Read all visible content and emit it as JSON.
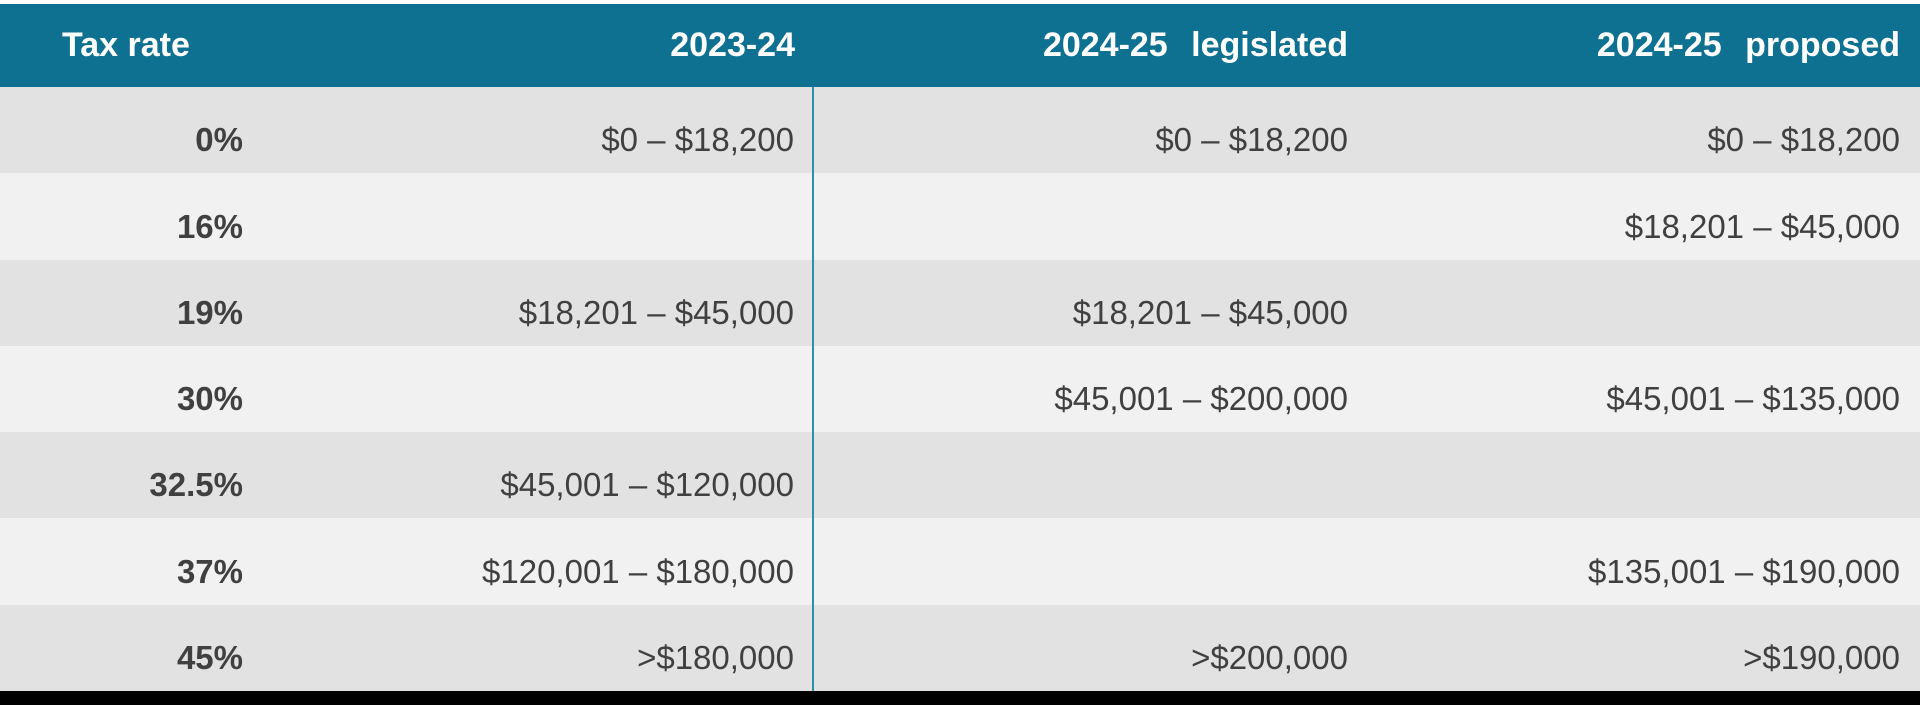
{
  "colors": {
    "header_bg": "#0E7191",
    "header_text": "#FFFFFF",
    "separator_line": "#2E8FA9",
    "row_shade_dark": "#E2E2E2",
    "row_shade_light": "#F1F1F1",
    "cell_text": "#404040",
    "bottom_bar": "#000000"
  },
  "table": {
    "headers": [
      {
        "label": "Tax rate"
      },
      {
        "label": "2023-24"
      },
      {
        "label": "2024-25 legislated"
      },
      {
        "label": "2024-25 proposed"
      }
    ],
    "rows": [
      {
        "cells": [
          "0%",
          "$0 – $18,200",
          "$0 – $18,200",
          "$0 – $18,200"
        ]
      },
      {
        "cells": [
          "16%",
          "",
          "",
          "$18,201 – $45,000"
        ]
      },
      {
        "cells": [
          "19%",
          "$18,201 – $45,000",
          "$18,201 – $45,000",
          ""
        ]
      },
      {
        "cells": [
          "30%",
          "",
          "$45,001 – $200,000",
          "$45,001 – $135,000"
        ]
      },
      {
        "cells": [
          "32.5%",
          "$45,001 – $120,000",
          "",
          ""
        ]
      },
      {
        "cells": [
          "37%",
          "$120,001 – $180,000",
          "",
          "$135,001 – $190,000"
        ]
      },
      {
        "cells": [
          "45%",
          ">$180,000",
          ">$200,000",
          ">$190,000"
        ]
      }
    ]
  },
  "chart_data": {
    "type": "table",
    "columns": [
      "Tax rate",
      "2023-24",
      "2024-25 legislated",
      "2024-25 proposed"
    ],
    "rows": [
      [
        "0%",
        "$0 – $18,200",
        "$0 – $18,200",
        "$0 – $18,200"
      ],
      [
        "16%",
        "",
        "",
        "$18,201 – $45,000"
      ],
      [
        "19%",
        "$18,201 – $45,000",
        "$18,201 – $45,000",
        ""
      ],
      [
        "30%",
        "",
        "$45,001 – $200,000",
        "$45,001 – $135,000"
      ],
      [
        "32.5%",
        "$45,001 – $120,000",
        "",
        ""
      ],
      [
        "37%",
        "$120,001 – $180,000",
        "",
        "$135,001 – $190,000"
      ],
      [
        "45%",
        ">$180,000",
        ">$200,000",
        ">$190,000"
      ]
    ]
  }
}
